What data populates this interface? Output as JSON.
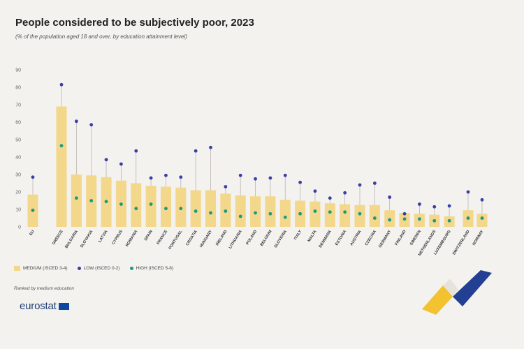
{
  "header": {
    "title": "People considered to be subjectively poor, 2023",
    "subtitle": "(% of the population aged 18 and over, by education attainment level)"
  },
  "legend": {
    "medium": "MEDIUM (ISCED 3-4)",
    "low": "LOW (ISCED 0-2)",
    "high": "HIGH (ISCED 5-8)"
  },
  "footnote": "Ranked by medium education",
  "brand": {
    "name": "eurostat"
  },
  "colors": {
    "medium_bar": "#f3d78a",
    "low_dot": "#3a3fa6",
    "high_dot": "#1a9a85",
    "whisker": "#b9b6b0",
    "background": "#f3f2ef"
  },
  "chart_data": {
    "type": "bar",
    "y_ticks": [
      0,
      10,
      20,
      30,
      40,
      50,
      60,
      70,
      80,
      90
    ],
    "ylim": [
      0,
      90
    ],
    "grid": false,
    "legend_position": "bottom-left",
    "categories": [
      "EU",
      "GREECE",
      "BULGARIA",
      "SLOVAKIA",
      "LATVIA",
      "CYPRUS",
      "ROMANIA",
      "SPAIN",
      "FRANCE",
      "PORTUGAL",
      "CROATIA",
      "HUNGARY",
      "IRELAND",
      "LITHUANIA",
      "POLAND",
      "BELGIUM",
      "SLOVENIA",
      "ITALY",
      "MALTA",
      "DENMARK",
      "ESTONIA",
      "AUSTRIA",
      "CZECHIA",
      "GERMANY",
      "FINLAND",
      "SWEDEN",
      "NETHERLANDS",
      "LUXEMBOURG",
      "SWITZERLAND",
      "NORWAY"
    ],
    "series": [
      {
        "name": "MEDIUM (ISCED 3-4)",
        "values": [
          18.5,
          69,
          30,
          29.5,
          28.5,
          26.5,
          25,
          23.5,
          23,
          22.5,
          21,
          21,
          19,
          18,
          17.5,
          17.5,
          15.5,
          15,
          14.5,
          13.5,
          13,
          12.5,
          12.5,
          9.5,
          8,
          7.5,
          7,
          6,
          9.5,
          7.5
        ]
      },
      {
        "name": "LOW (ISCED 0-2)",
        "values": [
          28.5,
          81.5,
          60.5,
          58.5,
          38.5,
          36,
          43.5,
          28,
          29.5,
          28.5,
          43.5,
          45.5,
          23,
          29.5,
          27.5,
          28,
          29.5,
          25.5,
          20.5,
          16.5,
          19.5,
          24,
          25,
          17,
          7.5,
          13,
          11.5,
          12,
          20,
          15.5
        ]
      },
      {
        "name": "HIGH (ISCED 5-8)",
        "values": [
          9.5,
          46.5,
          16.5,
          15,
          14.5,
          13,
          10.5,
          13,
          10.5,
          10.5,
          9,
          8,
          9,
          6,
          8,
          7.5,
          5.5,
          7.5,
          9,
          8.5,
          8.5,
          7.5,
          5,
          4,
          4.5,
          4.5,
          3.5,
          3.5,
          5,
          5
        ]
      }
    ]
  }
}
